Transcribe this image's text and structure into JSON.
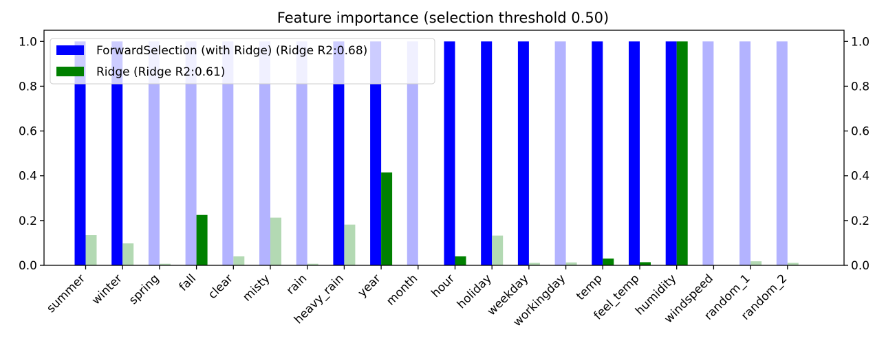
{
  "chart_data": {
    "type": "bar",
    "title": "Feature importance (selection threshold 0.50)",
    "xlabel": "",
    "ylabel": "",
    "ylim": [
      0,
      1.05
    ],
    "yticks": [
      "0.0",
      "0.2",
      "0.4",
      "0.6",
      "0.8",
      "1.0"
    ],
    "right_axis_mirrored": true,
    "grid": false,
    "legend_position": "top-left",
    "threshold": 0.5,
    "categories": [
      "summer",
      "winter",
      "spring",
      "fall",
      "clear",
      "misty",
      "rain",
      "heavy_rain",
      "year",
      "month",
      "hour",
      "holiday",
      "weekday",
      "workingday",
      "temp",
      "feel_temp",
      "humidity",
      "windspeed",
      "random_1",
      "random_2"
    ],
    "series": [
      {
        "name": "ForwardSelection (with Ridge) (Ridge R2:0.68)",
        "color": "#0000ff",
        "faded_color": "#b3b3ff",
        "values": [
          1,
          1,
          1,
          1,
          1,
          1,
          1,
          1,
          1,
          1,
          1,
          1,
          1,
          1,
          1,
          1,
          1,
          1,
          1,
          1
        ],
        "selected": [
          true,
          true,
          false,
          false,
          false,
          false,
          false,
          true,
          true,
          false,
          true,
          true,
          true,
          false,
          true,
          true,
          true,
          false,
          false,
          false
        ]
      },
      {
        "name": "Ridge (Ridge R2:0.61)",
        "color": "#008000",
        "faded_color": "#b3d9b3",
        "values": [
          0.135,
          0.098,
          0.007,
          0.225,
          0.04,
          0.213,
          0.007,
          0.182,
          0.415,
          0.0,
          0.04,
          0.133,
          0.011,
          0.013,
          0.03,
          0.014,
          1.0,
          0.0,
          0.018,
          0.011
        ],
        "selected": [
          false,
          false,
          false,
          true,
          false,
          false,
          false,
          false,
          true,
          false,
          true,
          false,
          false,
          false,
          true,
          true,
          true,
          false,
          false,
          false
        ]
      }
    ]
  }
}
